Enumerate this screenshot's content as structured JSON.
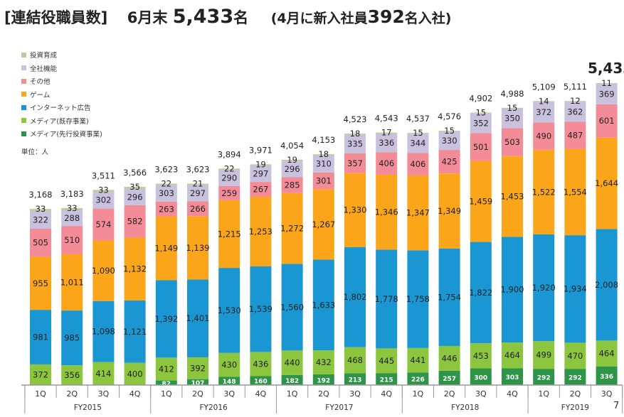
{
  "header": {
    "section": "[連結役職員数]",
    "headline_prefix": "6月末",
    "headline_value": "5,433",
    "headline_suffix": "名",
    "note_prefix": "(4月に新入社員",
    "note_value": "392",
    "note_suffix": "名入社)"
  },
  "page_number": "7",
  "chart_data": {
    "type": "bar",
    "stacked": true,
    "title": "連結役職員数",
    "unit_label": "単位：人",
    "legend_position": "top-left",
    "categories": [
      "1Q",
      "2Q",
      "3Q",
      "4Q",
      "1Q",
      "2Q",
      "3Q",
      "4Q",
      "1Q",
      "2Q",
      "3Q",
      "4Q",
      "1Q",
      "2Q",
      "3Q",
      "4Q",
      "1Q",
      "2Q",
      "3Q"
    ],
    "groups": [
      {
        "label": "FY2015",
        "count": 4
      },
      {
        "label": "FY2016",
        "count": 4
      },
      {
        "label": "FY2017",
        "count": 4
      },
      {
        "label": "FY2018",
        "count": 4
      },
      {
        "label": "FY2019",
        "count": 3
      }
    ],
    "series": [
      {
        "name": "メディア(先行投資事業)",
        "color": "#2e9448",
        "label_color": "#ffffff",
        "values": [
          0,
          0,
          0,
          0,
          82,
          107,
          148,
          160,
          182,
          192,
          213,
          215,
          226,
          257,
          300,
          303,
          292,
          292,
          336
        ]
      },
      {
        "name": "メディア(既存事業)",
        "color": "#8cc63e",
        "label_color": "#222222",
        "values": [
          372,
          356,
          414,
          400,
          412,
          392,
          430,
          436,
          440,
          432,
          468,
          445,
          441,
          446,
          453,
          464,
          499,
          470,
          464
        ]
      },
      {
        "name": "インターネット広告",
        "color": "#1a96d2",
        "label_color": "#222222",
        "values": [
          981,
          985,
          1098,
          1121,
          1392,
          1401,
          1530,
          1539,
          1560,
          1633,
          1802,
          1778,
          1758,
          1754,
          1822,
          1900,
          1920,
          1934,
          2008
        ]
      },
      {
        "name": "ゲーム",
        "color": "#fba51a",
        "label_color": "#222222",
        "values": [
          955,
          1011,
          1090,
          1132,
          1149,
          1139,
          1215,
          1253,
          1272,
          1267,
          1330,
          1346,
          1347,
          1349,
          1459,
          1453,
          1522,
          1554,
          1644
        ]
      },
      {
        "name": "その他",
        "color": "#f48c97",
        "label_color": "#222222",
        "values": [
          505,
          510,
          574,
          582,
          263,
          266,
          259,
          267,
          285,
          301,
          357,
          406,
          406,
          425,
          501,
          503,
          490,
          487,
          601
        ]
      },
      {
        "name": "全社機能",
        "color": "#c8c2de",
        "label_color": "#222222",
        "values": [
          322,
          288,
          302,
          296,
          303,
          297,
          290,
          297,
          296,
          310,
          335,
          336,
          344,
          330,
          352,
          350,
          372,
          362,
          369
        ]
      },
      {
        "name": "投資育成",
        "color": "#c3c89a",
        "label_color": "#222222",
        "values": [
          33,
          33,
          33,
          35,
          22,
          21,
          22,
          19,
          19,
          18,
          18,
          17,
          15,
          15,
          15,
          15,
          14,
          12,
          11
        ]
      }
    ],
    "totals": [
      "3,168",
      "3,183",
      "3,511",
      "3,566",
      "3,623",
      "3,623",
      "3,894",
      "3,971",
      "4,054",
      "4,153",
      "4,523",
      "4,543",
      "4,537",
      "4,576",
      "4,902",
      "4,988",
      "5,109",
      "5,111",
      "5,433"
    ],
    "legend_order": [
      "投資育成",
      "全社機能",
      "その他",
      "ゲーム",
      "インターネット広告",
      "メディア(既存事業)",
      "メディア(先行投資事業)"
    ],
    "ylim": [
      0,
      5433
    ],
    "grid": false
  }
}
